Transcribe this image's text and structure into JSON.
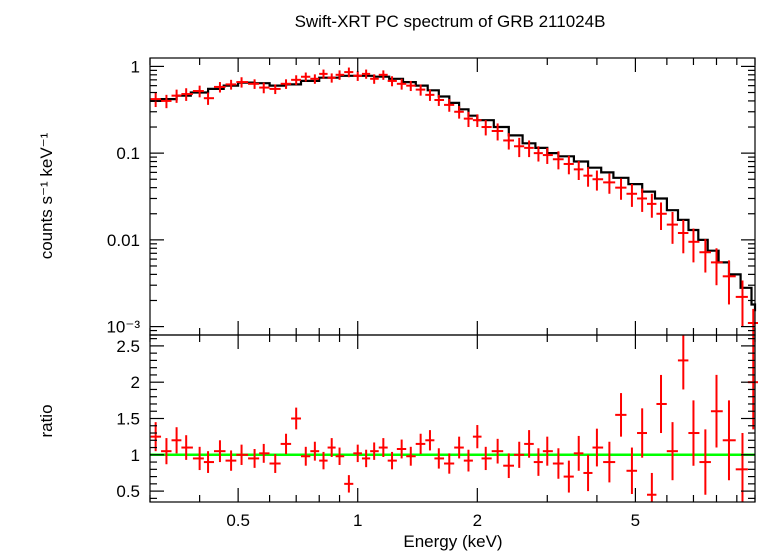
{
  "chart_data": [
    {
      "type": "scatter",
      "panel": "spectrum",
      "title": "Swift-XRT PC spectrum of GRB 211024B",
      "ylabel": "counts s⁻¹ keV⁻¹",
      "xlabel": "Energy (keV)",
      "xscale": "log",
      "yscale": "log",
      "xlim": [
        0.3,
        10
      ],
      "ylim": [
        0.0008,
        1.25
      ],
      "x_ticks": [
        0.5,
        1,
        2,
        5
      ],
      "x_tick_labels": [
        "0.5",
        "1",
        "2",
        "5"
      ],
      "y_ticks": [
        1,
        0.1,
        0.01,
        0.001
      ],
      "y_tick_labels": [
        "1",
        "0.1",
        "0.01",
        "10⁻³"
      ],
      "series": [
        {
          "role": "data",
          "color": "#ff0000",
          "style": "errorbar",
          "points": [
            [
              0.31,
              0.42,
              0.08
            ],
            [
              0.33,
              0.4,
              0.07
            ],
            [
              0.35,
              0.46,
              0.08
            ],
            [
              0.37,
              0.48,
              0.08
            ],
            [
              0.4,
              0.52,
              0.08
            ],
            [
              0.42,
              0.43,
              0.07
            ],
            [
              0.45,
              0.58,
              0.08
            ],
            [
              0.48,
              0.62,
              0.08
            ],
            [
              0.51,
              0.66,
              0.09
            ],
            [
              0.55,
              0.63,
              0.08
            ],
            [
              0.58,
              0.57,
              0.08
            ],
            [
              0.62,
              0.55,
              0.07
            ],
            [
              0.66,
              0.63,
              0.08
            ],
            [
              0.7,
              0.7,
              0.09
            ],
            [
              0.74,
              0.76,
              0.09
            ],
            [
              0.78,
              0.72,
              0.09
            ],
            [
              0.82,
              0.82,
              0.1
            ],
            [
              0.86,
              0.74,
              0.09
            ],
            [
              0.9,
              0.8,
              0.1
            ],
            [
              0.95,
              0.86,
              0.11
            ],
            [
              1.0,
              0.78,
              0.1
            ],
            [
              1.05,
              0.82,
              0.1
            ],
            [
              1.1,
              0.72,
              0.09
            ],
            [
              1.16,
              0.8,
              0.1
            ],
            [
              1.22,
              0.68,
              0.09
            ],
            [
              1.29,
              0.63,
              0.09
            ],
            [
              1.36,
              0.6,
              0.08
            ],
            [
              1.44,
              0.54,
              0.08
            ],
            [
              1.52,
              0.47,
              0.07
            ],
            [
              1.6,
              0.41,
              0.06
            ],
            [
              1.7,
              0.36,
              0.06
            ],
            [
              1.8,
              0.3,
              0.05
            ],
            [
              1.9,
              0.25,
              0.05
            ],
            [
              2.0,
              0.24,
              0.04
            ],
            [
              2.1,
              0.2,
              0.04
            ],
            [
              2.25,
              0.18,
              0.04
            ],
            [
              2.4,
              0.14,
              0.03
            ],
            [
              2.55,
              0.12,
              0.03
            ],
            [
              2.7,
              0.115,
              0.025
            ],
            [
              2.85,
              0.1,
              0.02
            ],
            [
              3.0,
              0.095,
              0.02
            ],
            [
              3.2,
              0.085,
              0.02
            ],
            [
              3.4,
              0.075,
              0.018
            ],
            [
              3.6,
              0.065,
              0.016
            ],
            [
              3.8,
              0.055,
              0.014
            ],
            [
              4.0,
              0.05,
              0.013
            ],
            [
              4.3,
              0.046,
              0.012
            ],
            [
              4.6,
              0.04,
              0.011
            ],
            [
              4.9,
              0.034,
              0.01
            ],
            [
              5.2,
              0.03,
              0.009
            ],
            [
              5.5,
              0.026,
              0.008
            ],
            [
              5.8,
              0.02,
              0.007
            ],
            [
              6.2,
              0.015,
              0.006
            ],
            [
              6.6,
              0.012,
              0.005
            ],
            [
              7.0,
              0.0095,
              0.004
            ],
            [
              7.5,
              0.0072,
              0.003
            ],
            [
              8.0,
              0.0055,
              0.0025
            ],
            [
              8.6,
              0.0038,
              0.002
            ],
            [
              9.3,
              0.0022,
              0.0012
            ],
            [
              9.9,
              0.0011,
              0.0005
            ]
          ]
        },
        {
          "role": "model",
          "color": "#000000",
          "style": "step",
          "points": [
            [
              0.3,
              0.4
            ],
            [
              0.32,
              0.42
            ],
            [
              0.35,
              0.46
            ],
            [
              0.38,
              0.5
            ],
            [
              0.42,
              0.55
            ],
            [
              0.46,
              0.6
            ],
            [
              0.5,
              0.65
            ],
            [
              0.55,
              0.64
            ],
            [
              0.6,
              0.6
            ],
            [
              0.66,
              0.62
            ],
            [
              0.72,
              0.68
            ],
            [
              0.8,
              0.74
            ],
            [
              0.9,
              0.78
            ],
            [
              1.0,
              0.78
            ],
            [
              1.1,
              0.76
            ],
            [
              1.2,
              0.72
            ],
            [
              1.3,
              0.66
            ],
            [
              1.4,
              0.6
            ],
            [
              1.5,
              0.53
            ],
            [
              1.6,
              0.45
            ],
            [
              1.7,
              0.38
            ],
            [
              1.8,
              0.32
            ],
            [
              1.9,
              0.27
            ],
            [
              2.0,
              0.24
            ],
            [
              2.2,
              0.2
            ],
            [
              2.4,
              0.16
            ],
            [
              2.6,
              0.13
            ],
            [
              2.8,
              0.115
            ],
            [
              3.0,
              0.1
            ],
            [
              3.2,
              0.092
            ],
            [
              3.5,
              0.08
            ],
            [
              3.8,
              0.068
            ],
            [
              4.1,
              0.06
            ],
            [
              4.4,
              0.052
            ],
            [
              4.8,
              0.044
            ],
            [
              5.2,
              0.036
            ],
            [
              5.6,
              0.03
            ],
            [
              6.0,
              0.022
            ],
            [
              6.4,
              0.017
            ],
            [
              6.8,
              0.013
            ],
            [
              7.2,
              0.01
            ],
            [
              7.6,
              0.0075
            ],
            [
              8.1,
              0.0055
            ],
            [
              8.6,
              0.004
            ],
            [
              9.2,
              0.0028
            ],
            [
              9.8,
              0.0018
            ],
            [
              10.0,
              0.0015
            ]
          ]
        }
      ]
    },
    {
      "type": "scatter",
      "panel": "ratio",
      "ylabel": "ratio",
      "xlabel": "Energy (keV)",
      "xscale": "log",
      "xlim": [
        0.3,
        10
      ],
      "ylim": [
        0.35,
        2.65
      ],
      "x_ticks": [
        0.5,
        1,
        2,
        5
      ],
      "x_tick_labels": [
        "0.5",
        "1",
        "2",
        "5"
      ],
      "y_ticks": [
        0.5,
        1,
        1.5,
        2,
        2.5
      ],
      "y_tick_labels": [
        "0.5",
        "1",
        "1.5",
        "2",
        "2.5"
      ],
      "reference_line": {
        "y": 1,
        "color": "#00ff00"
      },
      "series": [
        {
          "role": "ratio",
          "color": "#ff0000",
          "style": "errorbar",
          "points": [
            [
              0.31,
              1.25,
              0.2
            ],
            [
              0.33,
              1.05,
              0.18
            ],
            [
              0.35,
              1.2,
              0.18
            ],
            [
              0.37,
              1.1,
              0.17
            ],
            [
              0.4,
              0.95,
              0.16
            ],
            [
              0.42,
              0.9,
              0.15
            ],
            [
              0.45,
              1.05,
              0.15
            ],
            [
              0.48,
              0.92,
              0.14
            ],
            [
              0.51,
              1.0,
              0.14
            ],
            [
              0.55,
              0.95,
              0.13
            ],
            [
              0.58,
              1.02,
              0.13
            ],
            [
              0.62,
              0.88,
              0.13
            ],
            [
              0.66,
              1.15,
              0.14
            ],
            [
              0.7,
              1.5,
              0.15
            ],
            [
              0.74,
              0.98,
              0.13
            ],
            [
              0.78,
              1.05,
              0.13
            ],
            [
              0.82,
              0.92,
              0.12
            ],
            [
              0.86,
              1.1,
              0.13
            ],
            [
              0.9,
              0.98,
              0.12
            ],
            [
              0.95,
              0.6,
              0.12
            ],
            [
              1.0,
              1.02,
              0.12
            ],
            [
              1.05,
              0.95,
              0.12
            ],
            [
              1.1,
              1.05,
              0.12
            ],
            [
              1.16,
              1.1,
              0.13
            ],
            [
              1.22,
              0.92,
              0.12
            ],
            [
              1.29,
              1.08,
              0.13
            ],
            [
              1.36,
              0.98,
              0.13
            ],
            [
              1.44,
              1.15,
              0.14
            ],
            [
              1.52,
              1.2,
              0.14
            ],
            [
              1.6,
              0.95,
              0.14
            ],
            [
              1.7,
              0.88,
              0.14
            ],
            [
              1.8,
              1.1,
              0.15
            ],
            [
              1.9,
              0.92,
              0.15
            ],
            [
              2.0,
              1.25,
              0.16
            ],
            [
              2.1,
              0.95,
              0.16
            ],
            [
              2.25,
              1.05,
              0.17
            ],
            [
              2.4,
              0.85,
              0.17
            ],
            [
              2.55,
              1.0,
              0.18
            ],
            [
              2.7,
              1.15,
              0.19
            ],
            [
              2.85,
              0.9,
              0.19
            ],
            [
              3.0,
              1.05,
              0.2
            ],
            [
              3.2,
              0.88,
              0.21
            ],
            [
              3.4,
              0.7,
              0.22
            ],
            [
              3.6,
              1.02,
              0.24
            ],
            [
              3.8,
              0.75,
              0.25
            ],
            [
              4.0,
              1.1,
              0.26
            ],
            [
              4.3,
              0.9,
              0.28
            ],
            [
              4.6,
              1.55,
              0.3
            ],
            [
              4.9,
              0.78,
              0.32
            ],
            [
              5.2,
              1.3,
              0.34
            ],
            [
              5.5,
              0.45,
              0.3
            ],
            [
              5.8,
              1.7,
              0.4
            ],
            [
              6.2,
              1.05,
              0.4
            ],
            [
              6.6,
              2.3,
              0.4
            ],
            [
              7.0,
              1.3,
              0.45
            ],
            [
              7.5,
              0.9,
              0.45
            ],
            [
              8.0,
              1.6,
              0.5
            ],
            [
              8.6,
              1.2,
              0.55
            ],
            [
              9.3,
              0.8,
              0.5
            ],
            [
              9.9,
              2.0,
              0.65
            ]
          ]
        }
      ]
    }
  ]
}
